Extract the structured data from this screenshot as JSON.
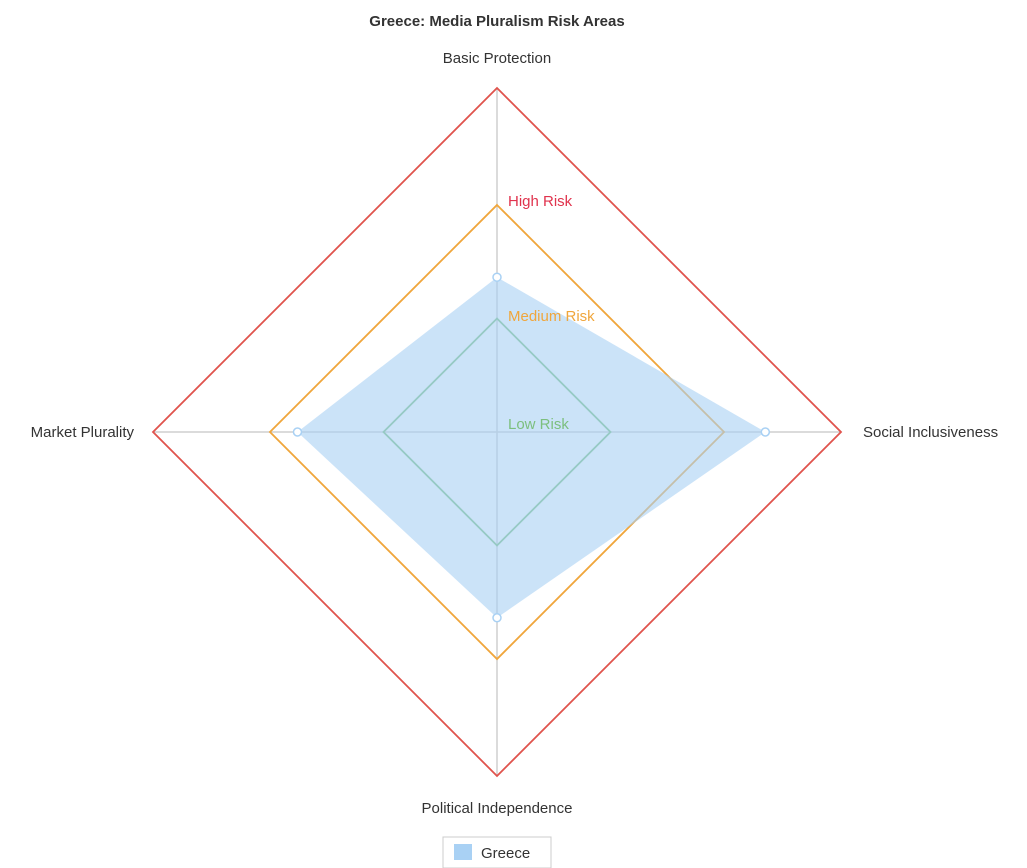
{
  "chart_data": {
    "type": "radar",
    "title": "Greece: Media Pluralism Risk Areas",
    "axes": [
      "Basic Protection",
      "Social Inclusiveness",
      "Political Independence",
      "Market Plurality"
    ],
    "range": [
      0,
      100
    ],
    "series": [
      {
        "name": "Greece",
        "values": [
          45,
          78,
          54,
          58
        ],
        "color": "#a9d1f4"
      }
    ],
    "risk_bands": [
      {
        "label": "Low Risk",
        "value": 33,
        "color": "#7cbf7e"
      },
      {
        "label": "Medium Risk",
        "value": 66,
        "color": "#f0a63c"
      },
      {
        "label": "High Risk",
        "value": 100,
        "color": "#e0534d"
      }
    ],
    "band_label_texts": {
      "low": "Low Risk",
      "medium": "Medium Risk",
      "high": "High Risk"
    },
    "legend": {
      "position": "bottom",
      "entries": [
        "Greece"
      ]
    }
  }
}
